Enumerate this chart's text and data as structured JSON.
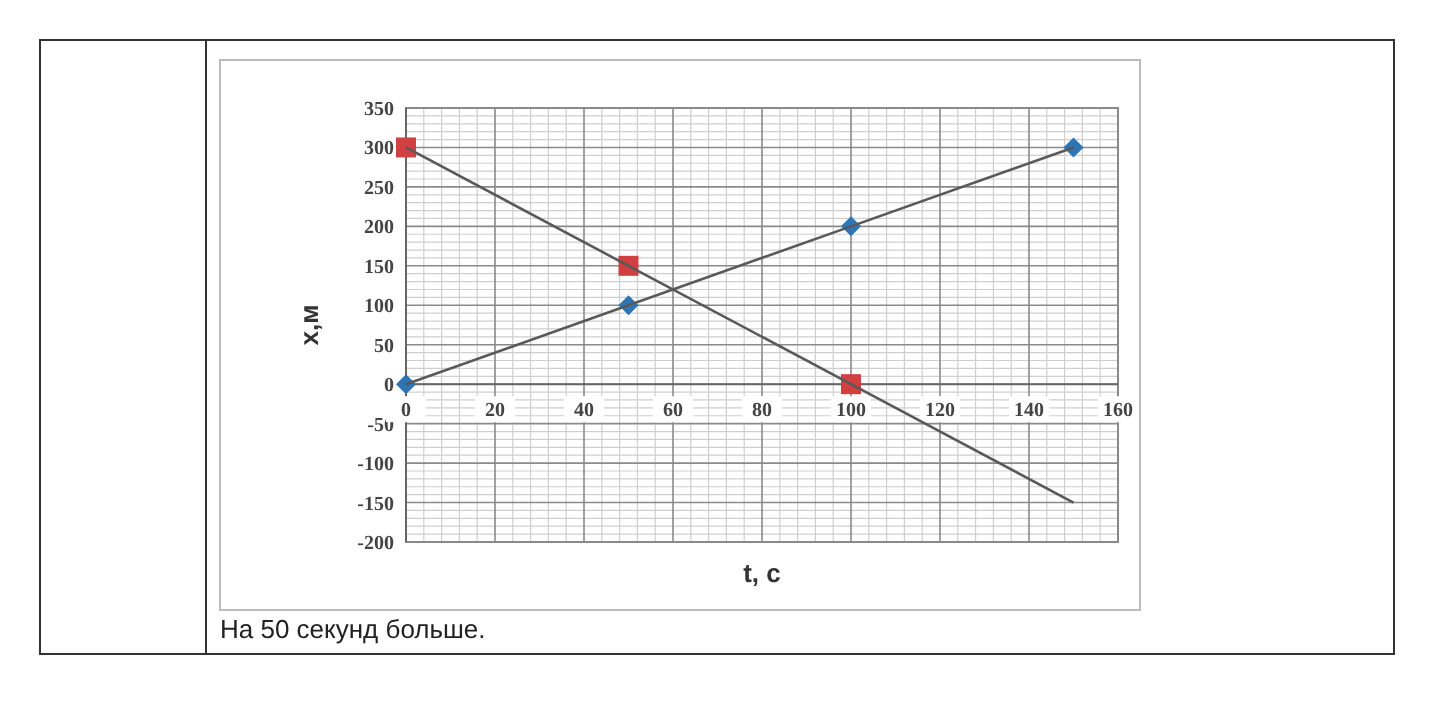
{
  "chart_data": {
    "type": "line",
    "xlabel": "t, c",
    "ylabel": "x,м",
    "xlim": [
      0,
      160
    ],
    "xticks": [
      0,
      20,
      40,
      60,
      80,
      100,
      120,
      140,
      160
    ],
    "ylim": [
      -200,
      350
    ],
    "yticks": [
      -200,
      -150,
      -100,
      -50,
      0,
      50,
      100,
      150,
      200,
      250,
      300,
      350
    ],
    "grid": true,
    "series": [
      {
        "color": "#595959",
        "marker": "none",
        "x": [
          0,
          50,
          100,
          150
        ],
        "values": [
          0,
          100,
          200,
          300
        ]
      },
      {
        "color": "#595959",
        "marker": "none",
        "x": [
          0,
          50,
          100,
          150
        ],
        "values": [
          300,
          150,
          0,
          -150
        ]
      },
      {
        "type": "scatter",
        "color": "#2e75b6",
        "marker": "diamond",
        "x": [
          0,
          50,
          100,
          150
        ],
        "values": [
          0,
          100,
          200,
          300
        ]
      },
      {
        "type": "scatter",
        "color": "#d04040",
        "marker": "square",
        "x": [
          0,
          50,
          100
        ],
        "values": [
          300,
          150,
          0
        ]
      }
    ],
    "annotations": [
      "На 50 секунд больше."
    ]
  }
}
